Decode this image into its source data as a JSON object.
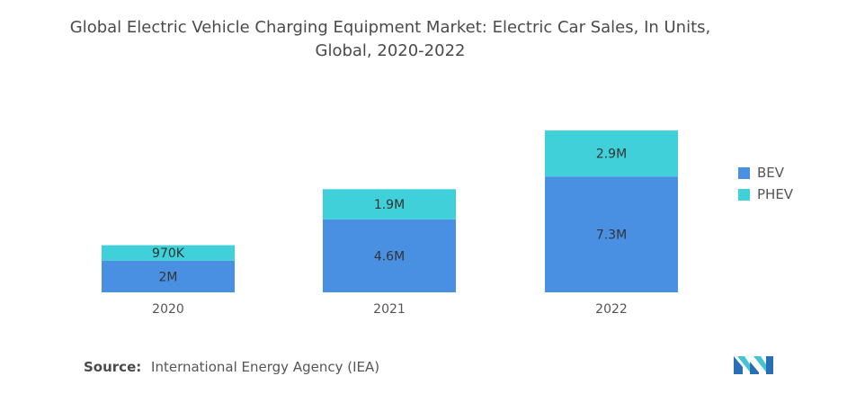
{
  "title_line1": "Global Electric Vehicle Charging Equipment Market: Electric Car Sales, In Units,",
  "title_line2": "Global, 2020-2022",
  "source": {
    "label": "Source:",
    "text": "International Energy Agency (IEA)"
  },
  "logo_icon": "mordor-intelligence-logo-icon",
  "colors": {
    "BEV": "#4a90e2",
    "PHEV": "#3fd0d9",
    "bar_label": "#333333",
    "axis_label": "#555555"
  },
  "chart_data": {
    "type": "bar",
    "stacked": true,
    "categories": [
      "2020",
      "2021",
      "2022"
    ],
    "series": [
      {
        "name": "BEV",
        "values": [
          2000000,
          4600000,
          7300000
        ],
        "labels": [
          "2M",
          "4.6M",
          "7.3M"
        ]
      },
      {
        "name": "PHEV",
        "values": [
          970000,
          1900000,
          2900000
        ],
        "labels": [
          "970K",
          "1.9M",
          "2.9M"
        ]
      }
    ],
    "title": "Global Electric Vehicle Charging Equipment Market: Electric Car Sales, In Units, Global, 2020-2022",
    "xlabel": "",
    "ylabel": "",
    "ylim": [
      0,
      10200000
    ],
    "grid": false,
    "legend_position": "right"
  }
}
